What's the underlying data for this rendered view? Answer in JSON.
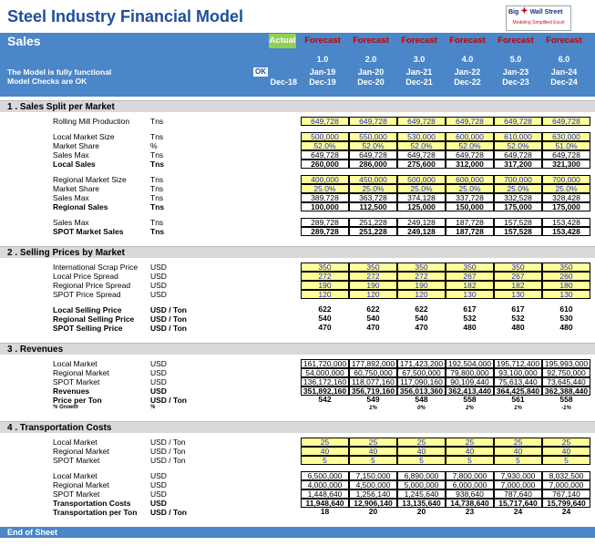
{
  "title": "Steel Industry Financial Model",
  "logo": {
    "line1": "Big",
    "line2": "Wall Street",
    "tag": "Modeling Simplified Excel"
  },
  "sheet": "Sales",
  "status": {
    "line1": "The Model is fully functional",
    "line2": "Model Checks are OK",
    "ok": "OK"
  },
  "header": {
    "actual": "Actual",
    "forecasts": [
      "Forecast",
      "Forecast",
      "Forecast",
      "Forecast",
      "Forecast",
      "Forecast"
    ],
    "periods": [
      "1.0",
      "2.0",
      "3.0",
      "4.0",
      "5.0",
      "6.0"
    ],
    "starts": [
      "Jan-19",
      "Jan-20",
      "Jan-21",
      "Jan-22",
      "Jan-23",
      "Jan-24"
    ],
    "actual_end": "Dec-18",
    "ends": [
      "Dec-19",
      "Dec-20",
      "Dec-21",
      "Dec-22",
      "Dec-23",
      "Dec-24"
    ]
  },
  "sections": [
    {
      "title": "1 .  Sales Split per Market",
      "rows": [
        {
          "l": "Rolling Mill Production",
          "u": "Tns",
          "t": "inp",
          "v": [
            "649,728",
            "649,728",
            "649,728",
            "649,728",
            "649,728",
            "649,728"
          ]
        },
        {
          "gap": 1
        },
        {
          "l": "Local Market Size",
          "u": "Tns",
          "t": "inp",
          "v": [
            "500,000",
            "550,000",
            "530,000",
            "600,000",
            "610,000",
            "630,000"
          ]
        },
        {
          "l": "Market Share",
          "u": "%",
          "t": "inp",
          "v": [
            "52.0%",
            "52.0%",
            "52.0%",
            "52.0%",
            "52.0%",
            "51.0%"
          ]
        },
        {
          "l": "Sales Max",
          "u": "Tns",
          "t": "calc",
          "v": [
            "649,728",
            "649,728",
            "649,728",
            "649,728",
            "649,728",
            "649,728"
          ]
        },
        {
          "l": "Local Sales",
          "u": "Tns",
          "t": "calc",
          "b": 1,
          "v": [
            "260,000",
            "286,000",
            "275,600",
            "312,000",
            "317,200",
            "321,300"
          ]
        },
        {
          "gap": 1
        },
        {
          "l": "Regional Market Size",
          "u": "Tns",
          "t": "inp",
          "v": [
            "400,000",
            "450,000",
            "500,000",
            "600,000",
            "700,000",
            "700,000"
          ]
        },
        {
          "l": "Market Share",
          "u": "Tns",
          "t": "inp",
          "v": [
            "25.0%",
            "25.0%",
            "25.0%",
            "25.0%",
            "25.0%",
            "25.0%"
          ]
        },
        {
          "l": "Sales Max",
          "u": "Tns",
          "t": "calc",
          "v": [
            "389,728",
            "363,728",
            "374,128",
            "337,728",
            "332,528",
            "328,428"
          ]
        },
        {
          "l": "Regional Sales",
          "u": "Tns",
          "t": "calc",
          "b": 1,
          "v": [
            "100,000",
            "112,500",
            "125,000",
            "150,000",
            "175,000",
            "175,000"
          ]
        },
        {
          "gap": 1
        },
        {
          "l": "Sales Max",
          "u": "Tns",
          "t": "calc",
          "v": [
            "289,728",
            "251,228",
            "249,128",
            "187,728",
            "157,528",
            "153,428"
          ]
        },
        {
          "l": "SPOT Market Sales",
          "u": "Tns",
          "t": "calc",
          "b": 1,
          "v": [
            "289,728",
            "251,228",
            "249,128",
            "187,728",
            "157,528",
            "153,428"
          ]
        }
      ]
    },
    {
      "title": "2 .  Selling Prices by Market",
      "rows": [
        {
          "l": "International Scrap Price",
          "u": "USD",
          "t": "inp",
          "v": [
            "350",
            "350",
            "350",
            "350",
            "350",
            "350"
          ]
        },
        {
          "l": "Local Price Spread",
          "u": "USD",
          "t": "inp",
          "v": [
            "272",
            "272",
            "272",
            "267",
            "267",
            "260"
          ]
        },
        {
          "l": "Regional Price Spread",
          "u": "USD",
          "t": "inp",
          "v": [
            "190",
            "190",
            "190",
            "182",
            "182",
            "180"
          ]
        },
        {
          "l": "SPOT Price Spread",
          "u": "USD",
          "t": "inp",
          "v": [
            "120",
            "120",
            "120",
            "130",
            "130",
            "130"
          ]
        },
        {
          "gap": 1
        },
        {
          "l": "Local Selling Price",
          "u": "USD / Ton",
          "t": "calc",
          "b": 1,
          "nb": 1,
          "v": [
            "622",
            "622",
            "622",
            "617",
            "617",
            "610"
          ]
        },
        {
          "l": "Regional Selling Price",
          "u": "USD / Ton",
          "t": "calc",
          "b": 1,
          "nb": 1,
          "v": [
            "540",
            "540",
            "540",
            "532",
            "532",
            "530"
          ]
        },
        {
          "l": "SPOT Selling Price",
          "u": "USD / Ton",
          "t": "calc",
          "b": 1,
          "nb": 1,
          "v": [
            "470",
            "470",
            "470",
            "480",
            "480",
            "480"
          ]
        }
      ]
    },
    {
      "title": "3 .  Revenues",
      "rows": [
        {
          "l": "Local Market",
          "u": "USD",
          "t": "calc",
          "v": [
            "161,720,000",
            "177,892,000",
            "171,423,200",
            "192,504,000",
            "195,712,400",
            "195,993,000"
          ]
        },
        {
          "l": "Regional Market",
          "u": "USD",
          "t": "calc",
          "v": [
            "54,000,000",
            "60,750,000",
            "67,500,000",
            "79,800,000",
            "93,100,000",
            "92,750,000"
          ]
        },
        {
          "l": "SPOT Market",
          "u": "USD",
          "t": "calc",
          "v": [
            "136,172,160",
            "118,077,160",
            "117,090,160",
            "90,109,440",
            "75,613,440",
            "73,645,440"
          ]
        },
        {
          "l": "Revenues",
          "u": "USD",
          "t": "calc",
          "b": 1,
          "v": [
            "351,892,160",
            "356,719,160",
            "356,013,360",
            "362,413,440",
            "364,425,840",
            "362,388,440"
          ]
        },
        {
          "l": "Price per Ton",
          "u": "USD / Ton",
          "t": "calc",
          "b": 1,
          "nb": 1,
          "v": [
            "542",
            "549",
            "548",
            "558",
            "561",
            "558"
          ]
        },
        {
          "l": "% Growth",
          "u": "%",
          "t": "calc",
          "g": 1,
          "v": [
            "",
            "1%",
            "0%",
            "2%",
            "1%",
            "-1%"
          ]
        }
      ]
    },
    {
      "title": "4 .  Transportation Costs",
      "rows": [
        {
          "l": "Local Market",
          "u": "USD / Ton",
          "t": "inp",
          "v": [
            "25",
            "25",
            "25",
            "25",
            "25",
            "25"
          ]
        },
        {
          "l": "Regional Market",
          "u": "USD / Ton",
          "t": "inp",
          "v": [
            "40",
            "40",
            "40",
            "40",
            "40",
            "40"
          ]
        },
        {
          "l": "SPOT Market",
          "u": "USD / Ton",
          "t": "inp",
          "v": [
            "5",
            "5",
            "5",
            "5",
            "5",
            "5"
          ]
        },
        {
          "gap": 1
        },
        {
          "l": "Local Market",
          "u": "USD",
          "t": "calc",
          "v": [
            "6,500,000",
            "7,150,000",
            "6,890,000",
            "7,800,000",
            "7,930,000",
            "8,032,500"
          ]
        },
        {
          "l": "Regional Market",
          "u": "USD",
          "t": "calc",
          "v": [
            "4,000,000",
            "4,500,000",
            "5,000,000",
            "6,000,000",
            "7,000,000",
            "7,000,000"
          ]
        },
        {
          "l": "SPOT Market",
          "u": "USD",
          "t": "calc",
          "v": [
            "1,448,640",
            "1,256,140",
            "1,245,640",
            "938,640",
            "787,640",
            "767,140"
          ]
        },
        {
          "l": "Transportation Costs",
          "u": "USD",
          "t": "calc",
          "b": 1,
          "v": [
            "11,948,640",
            "12,906,140",
            "13,135,640",
            "14,738,640",
            "15,717,640",
            "15,799,640"
          ]
        },
        {
          "l": "Transportation per Ton",
          "u": "USD / Ton",
          "t": "calc",
          "b": 1,
          "nb": 1,
          "v": [
            "18",
            "20",
            "20",
            "23",
            "24",
            "24"
          ]
        }
      ]
    }
  ],
  "footer": "End of Sheet",
  "colors": {
    "header_blue": "#4a86c8",
    "title_blue": "#1f4e9c",
    "input_yellow": "#ffff99",
    "input_text": "#1f28c8",
    "forecast_red": "#c00000",
    "actual_green": "#92d050",
    "section_grey": "#d9d9d9"
  }
}
